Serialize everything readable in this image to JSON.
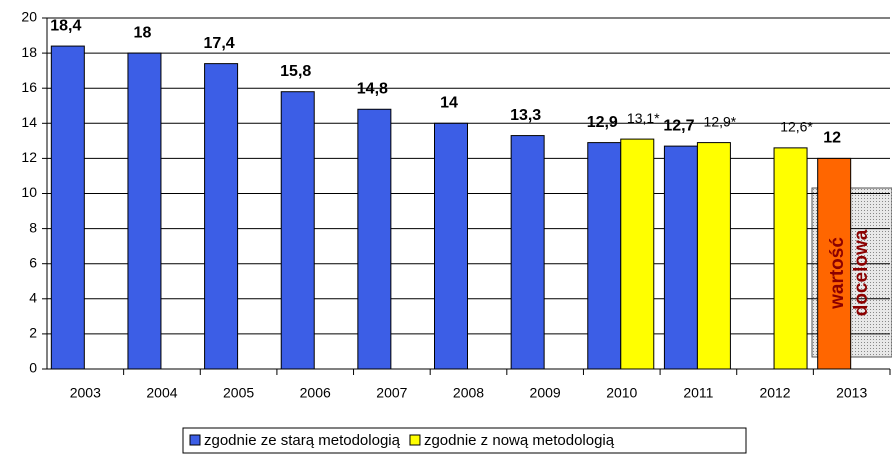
{
  "chart_data": {
    "type": "bar",
    "categories": [
      "2003",
      "2004",
      "2005",
      "2006",
      "2007",
      "2008",
      "2009",
      "2010",
      "2011",
      "2012",
      "2013"
    ],
    "series": [
      {
        "name": "zgodnie ze starą metodologią",
        "color": "#3c5ee6",
        "values": [
          18.4,
          18,
          17.4,
          15.8,
          14.8,
          14,
          13.3,
          12.9,
          12.7,
          null,
          null
        ],
        "value_labels": [
          "18,4",
          "18",
          "17,4",
          "15,8",
          "14,8",
          "14",
          "13,3",
          "12,9",
          "12,7",
          null,
          null
        ]
      },
      {
        "name": "zgodnie z nową metodologią",
        "color": "#ffff00",
        "values": [
          null,
          null,
          null,
          null,
          null,
          null,
          null,
          13.1,
          12.9,
          12.6,
          null
        ],
        "value_labels": [
          null,
          null,
          null,
          null,
          null,
          null,
          null,
          "13,1*",
          "12,9*",
          "12,6*",
          null
        ]
      },
      {
        "color": "#ff6600",
        "values": [
          null,
          null,
          null,
          null,
          null,
          null,
          null,
          null,
          null,
          null,
          12
        ],
        "value_labels": [
          null,
          null,
          null,
          null,
          null,
          null,
          null,
          null,
          null,
          null,
          "12"
        ]
      }
    ],
    "annotation": [
      "wartość",
      "docelowa"
    ],
    "ylim": [
      0,
      20
    ],
    "yticks": [
      0,
      2,
      4,
      6,
      8,
      10,
      12,
      14,
      16,
      18,
      20
    ],
    "grid": true
  }
}
